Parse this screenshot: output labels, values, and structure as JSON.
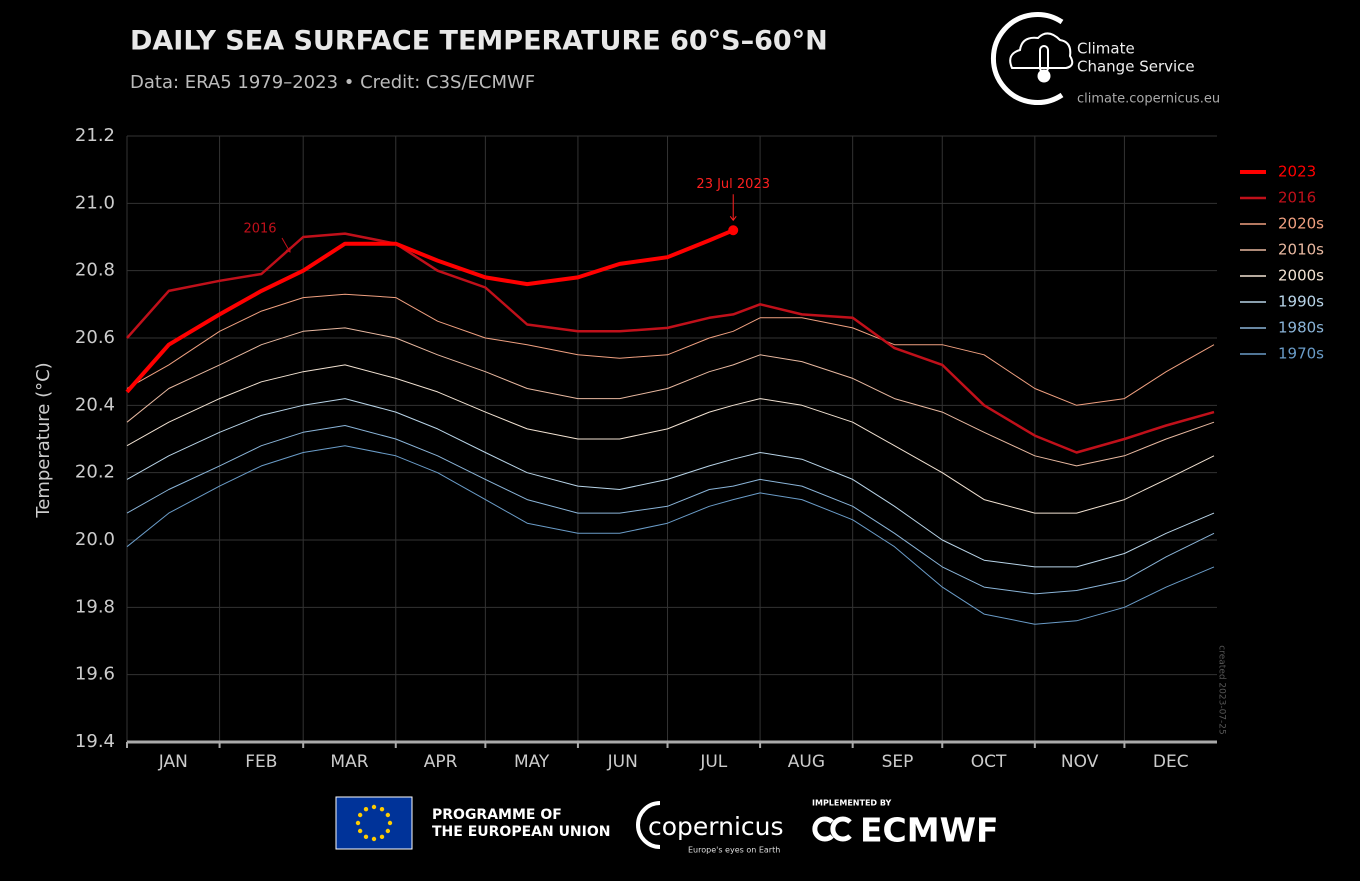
{
  "chart_data": {
    "type": "line",
    "title": "DAILY SEA SURFACE TEMPERATURE 60°S–60°N",
    "subtitle": "Data: ERA5 1979–2023 • Credit: C3S/ECMWF",
    "y_label": "Temperature (°C)",
    "x": [
      1,
      15,
      32,
      46,
      60,
      74,
      91,
      105,
      121,
      135,
      152,
      166,
      182,
      196,
      204,
      213,
      227,
      244,
      258,
      274,
      288,
      305,
      319,
      335,
      349,
      365
    ],
    "xlim": [
      1,
      366
    ],
    "xticks": [
      {
        "value": 1,
        "label": "JAN"
      },
      {
        "value": 32,
        "label": "FEB"
      },
      {
        "value": 60,
        "label": "MAR"
      },
      {
        "value": 91,
        "label": "APR"
      },
      {
        "value": 121,
        "label": "MAY"
      },
      {
        "value": 152,
        "label": "JUN"
      },
      {
        "value": 182,
        "label": "JUL"
      },
      {
        "value": 213,
        "label": "AUG"
      },
      {
        "value": 244,
        "label": "SEP"
      },
      {
        "value": 274,
        "label": "OCT"
      },
      {
        "value": 305,
        "label": "NOV"
      },
      {
        "value": 335,
        "label": "DEC"
      }
    ],
    "ylim": [
      19.4,
      21.2
    ],
    "yticks": [
      19.4,
      19.6,
      19.8,
      {
        "value": 20,
        "label": "20.0"
      },
      20.2,
      20.4,
      20.6,
      20.8,
      {
        "value": 21,
        "label": "21.0"
      },
      21.2
    ],
    "grid": true,
    "legend": "right",
    "annotations": [
      {
        "text": "23 Jul 2023",
        "color": "#ff2020"
      },
      {
        "text": "2016",
        "color": "#c0101a"
      }
    ],
    "series": [
      {
        "name": "1970s",
        "color": "#6a9cc8",
        "line_width": 1,
        "values": [
          19.98,
          20.08,
          20.16,
          20.22,
          20.26,
          20.28,
          20.25,
          20.2,
          20.12,
          20.05,
          20.02,
          20.02,
          20.05,
          20.1,
          20.12,
          20.14,
          20.12,
          20.06,
          19.98,
          19.86,
          19.78,
          19.75,
          19.76,
          19.8,
          19.86,
          19.92
        ]
      },
      {
        "name": "1980s",
        "color": "#8ab4d8",
        "line_width": 1,
        "values": [
          20.08,
          20.15,
          20.22,
          20.28,
          20.32,
          20.34,
          20.3,
          20.25,
          20.18,
          20.12,
          20.08,
          20.08,
          20.1,
          20.15,
          20.16,
          20.18,
          20.16,
          20.1,
          20.02,
          19.92,
          19.86,
          19.84,
          19.85,
          19.88,
          19.95,
          20.02
        ]
      },
      {
        "name": "1990s",
        "color": "#b8d4e8",
        "line_width": 1,
        "values": [
          20.18,
          20.25,
          20.32,
          20.37,
          20.4,
          20.42,
          20.38,
          20.33,
          20.26,
          20.2,
          20.16,
          20.15,
          20.18,
          20.22,
          20.24,
          20.26,
          20.24,
          20.18,
          20.1,
          20.0,
          19.94,
          19.92,
          19.92,
          19.96,
          20.02,
          20.08
        ]
      },
      {
        "name": "2000s",
        "color": "#f2e2d2",
        "line_width": 1,
        "values": [
          20.28,
          20.35,
          20.42,
          20.47,
          20.5,
          20.52,
          20.48,
          20.44,
          20.38,
          20.33,
          20.3,
          20.3,
          20.33,
          20.38,
          20.4,
          20.42,
          20.4,
          20.35,
          20.28,
          20.2,
          20.12,
          20.08,
          20.08,
          20.12,
          20.18,
          20.25
        ]
      },
      {
        "name": "2010s",
        "color": "#e8b8a0",
        "line_width": 1,
        "values": [
          20.35,
          20.45,
          20.52,
          20.58,
          20.62,
          20.63,
          20.6,
          20.55,
          20.5,
          20.45,
          20.42,
          20.42,
          20.45,
          20.5,
          20.52,
          20.55,
          20.53,
          20.48,
          20.42,
          20.38,
          20.32,
          20.25,
          20.22,
          20.25,
          20.3,
          20.35
        ]
      },
      {
        "name": "2020s",
        "color": "#f0a080",
        "line_width": 1,
        "values": [
          20.45,
          20.52,
          20.62,
          20.68,
          20.72,
          20.73,
          20.72,
          20.65,
          20.6,
          20.58,
          20.55,
          20.54,
          20.55,
          20.6,
          20.62,
          20.66,
          20.66,
          20.63,
          20.58,
          20.58,
          20.55,
          20.45,
          20.4,
          20.42,
          20.5,
          20.58
        ]
      },
      {
        "name": "2016",
        "color": "#c0101a",
        "line_width": 2.5,
        "values": [
          20.6,
          20.74,
          20.77,
          20.79,
          20.9,
          20.91,
          20.88,
          20.8,
          20.75,
          20.64,
          20.62,
          20.62,
          20.63,
          20.66,
          20.67,
          20.7,
          20.67,
          20.66,
          20.57,
          20.52,
          20.4,
          20.31,
          20.26,
          20.3,
          20.34,
          20.38
        ]
      },
      {
        "name": "2023",
        "color": "#ff0000",
        "line_width": 4,
        "values": [
          20.44,
          20.58,
          20.67,
          20.74,
          20.8,
          20.88,
          20.88,
          20.83,
          20.78,
          20.76,
          20.78,
          20.82,
          20.84,
          20.89,
          20.92,
          null,
          null,
          null,
          null,
          null,
          null,
          null,
          null,
          null,
          null,
          null
        ]
      }
    ]
  },
  "branding": {
    "service": [
      "Climate",
      "Change Service"
    ],
    "url": "climate.copernicus.eu",
    "created": "created  2023-07-25",
    "eu": [
      "PROGRAMME OF",
      "THE EUROPEAN UNION"
    ],
    "copernicus": "copernicus",
    "copernicus_tagline": "Europe's eyes on Earth",
    "implemented": "IMPLEMENTED BY",
    "ecmwf": "ECMWF"
  }
}
